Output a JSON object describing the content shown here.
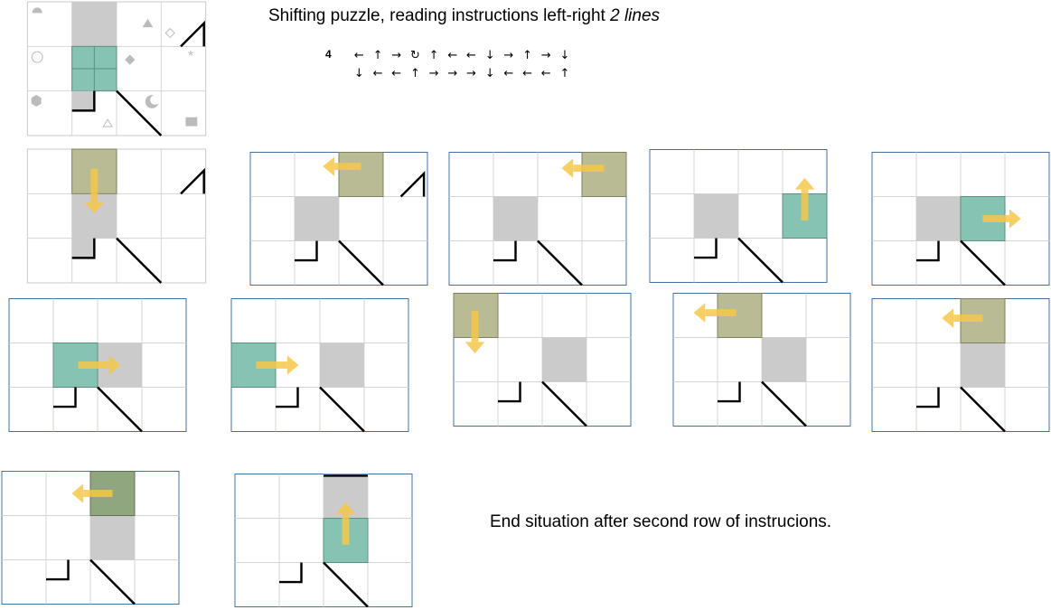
{
  "title": {
    "main": "Shifting puzzle, reading instructions left-right ",
    "emphasis": "2 lines"
  },
  "instructions": {
    "number": "4",
    "row1": [
      "←",
      "↑",
      "→",
      "↻",
      "↑",
      "←",
      "←",
      "↓",
      "→",
      "↑",
      "→",
      "↓"
    ],
    "row2": [
      "↓",
      "←",
      "←",
      "↑",
      "→",
      "→",
      "→",
      "↓",
      "←",
      "←",
      "←",
      "↑"
    ]
  },
  "end_caption": "End situation after second row of instrucions.",
  "colors": {
    "green_tile": "#86c3b2",
    "olive_tile": "#b9bb94",
    "gray_block": "#cbcbcb",
    "arrow": "#f6c84a",
    "frame": "#3f6fa6"
  }
}
